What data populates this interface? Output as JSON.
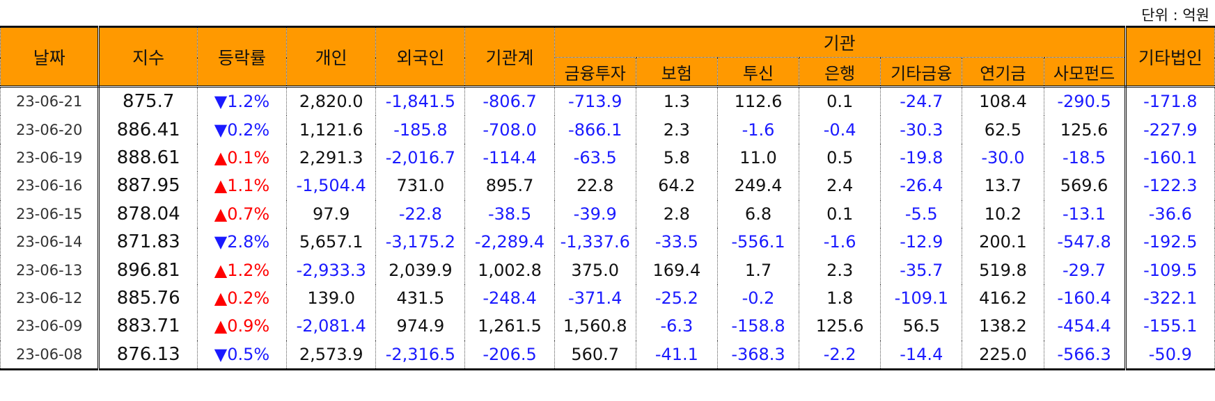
{
  "unit_label": "단위 : 억원",
  "headers": {
    "date": "날짜",
    "index": "지수",
    "change": "등락률",
    "individual": "개인",
    "foreign": "외국인",
    "institution_total": "기관계",
    "institution_group": "기관",
    "sub": [
      "금융투자",
      "보험",
      "투신",
      "은행",
      "기타금융",
      "연기금",
      "사모펀드"
    ],
    "other_corp": "기타법인"
  },
  "colors": {
    "header_bg": "#ff9900",
    "negative": "#1a1aff",
    "up_arrow": "#ff0000",
    "down_arrow": "#1a1aff"
  },
  "rows": [
    {
      "date": "23-06-21",
      "index": "875.7",
      "change": "▼1.2%",
      "dir": "down",
      "individual": "2,820.0",
      "foreign": "-1,841.5",
      "institution": "-806.7",
      "fin_invest": "-713.9",
      "insurance": "1.3",
      "trust": "112.6",
      "bank": "0.1",
      "other_fin": "-24.7",
      "pension": "108.4",
      "private_fund": "-290.5",
      "other_corp": "-171.8"
    },
    {
      "date": "23-06-20",
      "index": "886.41",
      "change": "▼0.2%",
      "dir": "down",
      "individual": "1,121.6",
      "foreign": "-185.8",
      "institution": "-708.0",
      "fin_invest": "-866.1",
      "insurance": "2.3",
      "trust": "-1.6",
      "bank": "-0.4",
      "other_fin": "-30.3",
      "pension": "62.5",
      "private_fund": "125.6",
      "other_corp": "-227.9"
    },
    {
      "date": "23-06-19",
      "index": "888.61",
      "change": "▲0.1%",
      "dir": "up",
      "individual": "2,291.3",
      "foreign": "-2,016.7",
      "institution": "-114.4",
      "fin_invest": "-63.5",
      "insurance": "5.8",
      "trust": "11.0",
      "bank": "0.5",
      "other_fin": "-19.8",
      "pension": "-30.0",
      "private_fund": "-18.5",
      "other_corp": "-160.1"
    },
    {
      "date": "23-06-16",
      "index": "887.95",
      "change": "▲1.1%",
      "dir": "up",
      "individual": "-1,504.4",
      "foreign": "731.0",
      "institution": "895.7",
      "fin_invest": "22.8",
      "insurance": "64.2",
      "trust": "249.4",
      "bank": "2.4",
      "other_fin": "-26.4",
      "pension": "13.7",
      "private_fund": "569.6",
      "other_corp": "-122.3"
    },
    {
      "date": "23-06-15",
      "index": "878.04",
      "change": "▲0.7%",
      "dir": "up",
      "individual": "97.9",
      "foreign": "-22.8",
      "institution": "-38.5",
      "fin_invest": "-39.9",
      "insurance": "2.8",
      "trust": "6.8",
      "bank": "0.1",
      "other_fin": "-5.5",
      "pension": "10.2",
      "private_fund": "-13.1",
      "other_corp": "-36.6"
    },
    {
      "date": "23-06-14",
      "index": "871.83",
      "change": "▼2.8%",
      "dir": "down",
      "individual": "5,657.1",
      "foreign": "-3,175.2",
      "institution": "-2,289.4",
      "fin_invest": "-1,337.6",
      "insurance": "-33.5",
      "trust": "-556.1",
      "bank": "-1.6",
      "other_fin": "-12.9",
      "pension": "200.1",
      "private_fund": "-547.8",
      "other_corp": "-192.5"
    },
    {
      "date": "23-06-13",
      "index": "896.81",
      "change": "▲1.2%",
      "dir": "up",
      "individual": "-2,933.3",
      "foreign": "2,039.9",
      "institution": "1,002.8",
      "fin_invest": "375.0",
      "insurance": "169.4",
      "trust": "1.7",
      "bank": "2.3",
      "other_fin": "-35.7",
      "pension": "519.8",
      "private_fund": "-29.7",
      "other_corp": "-109.5"
    },
    {
      "date": "23-06-12",
      "index": "885.76",
      "change": "▲0.2%",
      "dir": "up",
      "individual": "139.0",
      "foreign": "431.5",
      "institution": "-248.4",
      "fin_invest": "-371.4",
      "insurance": "-25.2",
      "trust": "-0.2",
      "bank": "1.8",
      "other_fin": "-109.1",
      "pension": "416.2",
      "private_fund": "-160.4",
      "other_corp": "-322.1"
    },
    {
      "date": "23-06-09",
      "index": "883.71",
      "change": "▲0.9%",
      "dir": "up",
      "individual": "-2,081.4",
      "foreign": "974.9",
      "institution": "1,261.5",
      "fin_invest": "1,560.8",
      "insurance": "-6.3",
      "trust": "-158.8",
      "bank": "125.6",
      "other_fin": "56.5",
      "pension": "138.2",
      "private_fund": "-454.4",
      "other_corp": "-155.1"
    },
    {
      "date": "23-06-08",
      "index": "876.13",
      "change": "▼0.5%",
      "dir": "down",
      "individual": "2,573.9",
      "foreign": "-2,316.5",
      "institution": "-206.5",
      "fin_invest": "560.7",
      "insurance": "-41.1",
      "trust": "-368.3",
      "bank": "-2.2",
      "other_fin": "-14.4",
      "pension": "225.0",
      "private_fund": "-566.3",
      "other_corp": "-50.9"
    }
  ]
}
